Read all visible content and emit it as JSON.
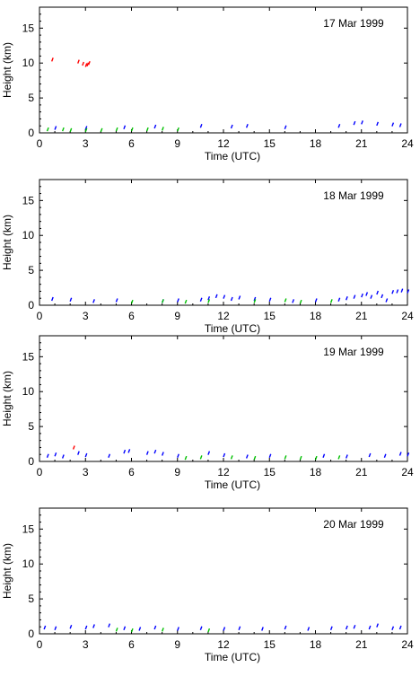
{
  "chart_data": [
    {
      "type": "scatter",
      "title": "17 Mar 1999",
      "xlabel": "Time (UTC)",
      "ylabel": "Height (km)",
      "xlim": [
        0,
        24
      ],
      "ylim": [
        0,
        18
      ],
      "xticks": [
        0,
        3,
        6,
        9,
        12,
        15,
        18,
        21,
        24
      ],
      "yticks": [
        0,
        5,
        10,
        15
      ],
      "grid": false,
      "series": [
        {
          "color": "#0000ff",
          "x": [
            1.0,
            3.0,
            5.5,
            7.5,
            10.5,
            12.5,
            13.5,
            16.0,
            19.5,
            20.5,
            21.0,
            22.0,
            23.0,
            23.5
          ],
          "y": [
            0.7,
            0.7,
            0.8,
            0.9,
            1.0,
            0.9,
            1.0,
            0.8,
            1.0,
            1.4,
            1.5,
            1.3,
            1.2,
            1.1
          ]
        },
        {
          "color": "#00c000",
          "x": [
            0.5,
            1.5,
            2.0,
            3.0,
            4.0,
            5.0,
            6.0,
            7.0,
            8.0,
            9.0
          ],
          "y": [
            0.5,
            0.5,
            0.4,
            0.4,
            0.4,
            0.5,
            0.5,
            0.5,
            0.6,
            0.5
          ]
        },
        {
          "color": "#ff0000",
          "x": [
            0.8,
            2.5,
            2.8,
            3.0,
            3.1,
            3.2
          ],
          "y": [
            10.5,
            10.2,
            9.9,
            9.7,
            9.8,
            10.0
          ]
        }
      ]
    },
    {
      "type": "scatter",
      "title": "18 Mar 1999",
      "xlabel": "Time (UTC)",
      "ylabel": "Height (km)",
      "xlim": [
        0,
        24
      ],
      "ylim": [
        0,
        18
      ],
      "xticks": [
        0,
        3,
        6,
        9,
        12,
        15,
        18,
        21,
        24
      ],
      "yticks": [
        0,
        5,
        10,
        15
      ],
      "grid": false,
      "series": [
        {
          "color": "#0000ff",
          "x": [
            0.8,
            2.0,
            3.5,
            5.0,
            8.0,
            9.0,
            10.5,
            11.0,
            11.5,
            12.0,
            12.5,
            13.0,
            14.0,
            15.0,
            16.5,
            18.0,
            19.5,
            20.0,
            20.5,
            21.0,
            21.3,
            21.6,
            22.0,
            22.3,
            22.6,
            23.0,
            23.3,
            23.6,
            24.0
          ],
          "y": [
            0.9,
            0.8,
            0.6,
            0.7,
            0.6,
            0.7,
            0.8,
            1.0,
            1.3,
            1.2,
            0.9,
            1.1,
            0.9,
            0.8,
            0.6,
            0.7,
            0.8,
            1.0,
            1.2,
            1.4,
            1.6,
            1.2,
            1.8,
            1.3,
            0.7,
            1.9,
            2.0,
            2.1,
            2.0
          ]
        },
        {
          "color": "#00c000",
          "x": [
            6.0,
            8.0,
            9.5,
            11.0,
            14.0,
            16.0,
            17.0,
            19.0
          ],
          "y": [
            0.5,
            0.6,
            0.5,
            0.6,
            0.6,
            0.7,
            0.5,
            0.6
          ]
        }
      ]
    },
    {
      "type": "scatter",
      "title": "19 Mar 1999",
      "xlabel": "Time (UTC)",
      "ylabel": "Height (km)",
      "xlim": [
        0,
        24
      ],
      "ylim": [
        0,
        18
      ],
      "xticks": [
        0,
        3,
        6,
        9,
        12,
        15,
        18,
        21,
        24
      ],
      "yticks": [
        0,
        5,
        10,
        15
      ],
      "grid": false,
      "series": [
        {
          "color": "#0000ff",
          "x": [
            0.5,
            1.0,
            1.5,
            2.5,
            3.0,
            4.5,
            5.5,
            5.8,
            7.0,
            7.5,
            8.0,
            9.0,
            11.0,
            12.0,
            13.5,
            15.0,
            18.5,
            20.0,
            21.5,
            22.5,
            23.5,
            24.0
          ],
          "y": [
            0.8,
            1.0,
            0.7,
            1.2,
            0.9,
            0.8,
            1.4,
            1.5,
            1.2,
            1.4,
            1.1,
            0.8,
            1.2,
            0.9,
            0.7,
            0.8,
            0.8,
            0.7,
            0.9,
            0.8,
            1.1,
            1.0
          ]
        },
        {
          "color": "#00c000",
          "x": [
            9.5,
            10.5,
            12.5,
            14.0,
            16.0,
            17.0,
            18.0,
            19.5
          ],
          "y": [
            0.5,
            0.6,
            0.6,
            0.5,
            0.6,
            0.5,
            0.5,
            0.6
          ]
        },
        {
          "color": "#ff0000",
          "x": [
            2.2
          ],
          "y": [
            2.0
          ]
        }
      ]
    },
    {
      "type": "scatter",
      "title": "20 Mar 1999",
      "xlabel": "Time (UTC)",
      "ylabel": "Height (km)",
      "xlim": [
        0,
        24
      ],
      "ylim": [
        0,
        18
      ],
      "xticks": [
        0,
        3,
        6,
        9,
        12,
        15,
        18,
        21,
        24
      ],
      "yticks": [
        0,
        5,
        10,
        15
      ],
      "grid": false,
      "series": [
        {
          "color": "#0000ff",
          "x": [
            0.3,
            1.0,
            2.0,
            3.0,
            3.5,
            4.5,
            5.5,
            6.5,
            7.5,
            9.0,
            10.5,
            12.0,
            13.0,
            14.5,
            16.0,
            17.5,
            19.0,
            20.0,
            20.5,
            21.5,
            22.0,
            23.0,
            23.5
          ],
          "y": [
            0.9,
            0.8,
            1.0,
            0.9,
            1.1,
            1.2,
            0.8,
            0.7,
            0.9,
            0.7,
            0.8,
            0.7,
            0.8,
            0.7,
            0.9,
            0.7,
            0.8,
            0.9,
            1.0,
            0.9,
            1.2,
            0.8,
            0.9
          ]
        },
        {
          "color": "#00c000",
          "x": [
            5.0,
            6.0,
            8.0,
            11.0
          ],
          "y": [
            0.6,
            0.5,
            0.6,
            0.5
          ]
        }
      ]
    }
  ]
}
